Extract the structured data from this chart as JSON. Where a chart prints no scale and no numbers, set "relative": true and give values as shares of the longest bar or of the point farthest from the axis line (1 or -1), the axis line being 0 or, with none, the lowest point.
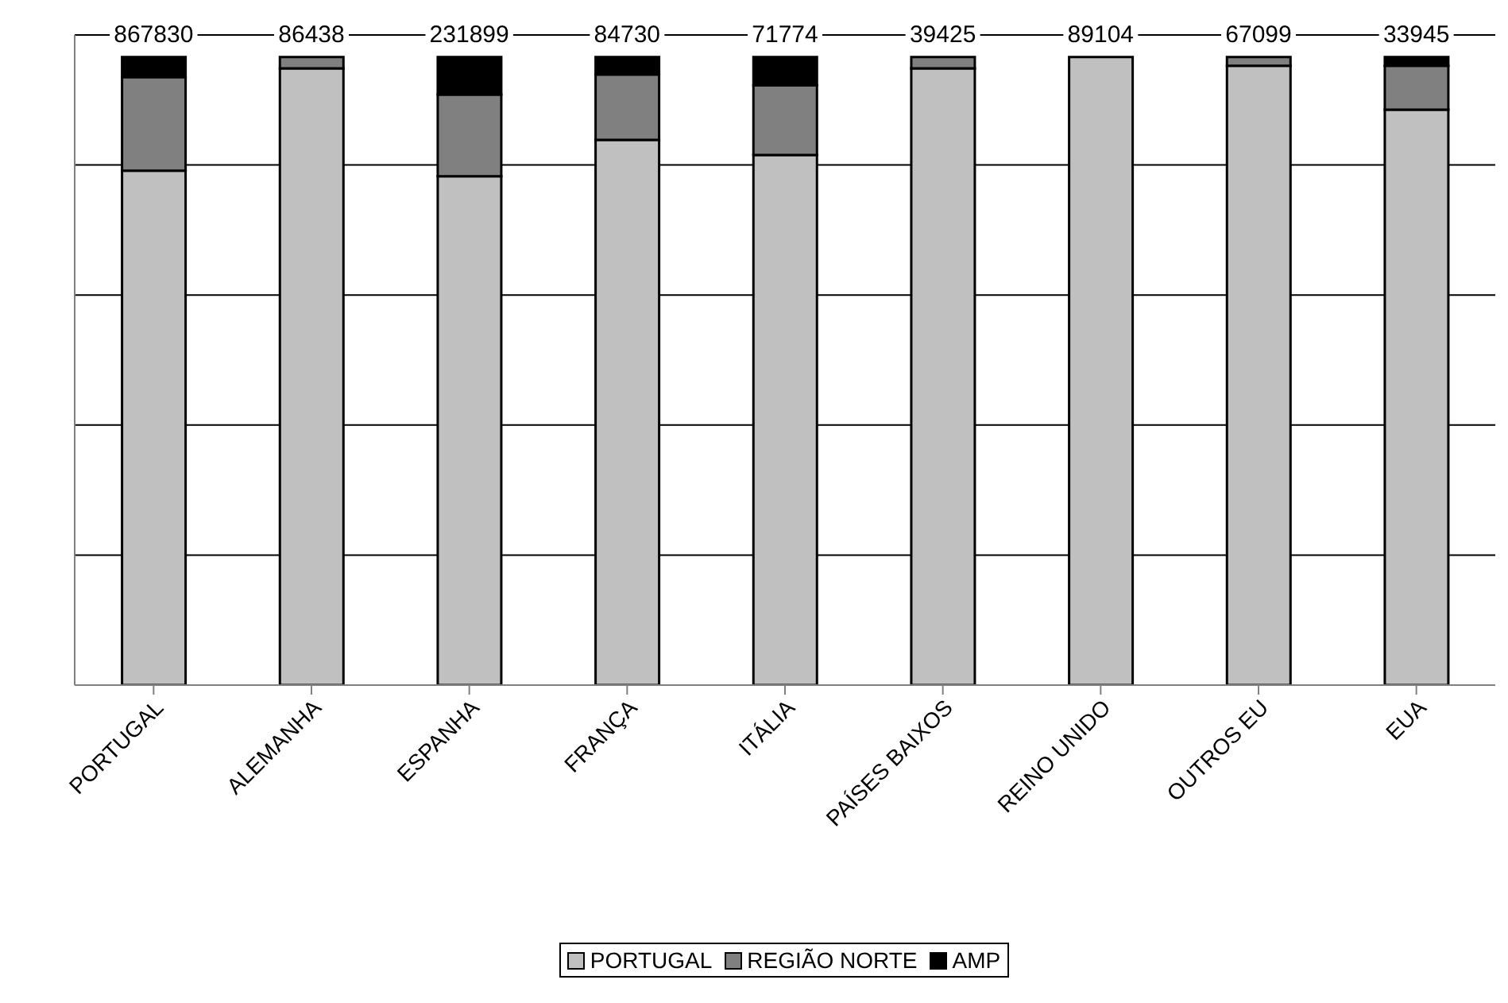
{
  "chart_data": {
    "type": "bar",
    "stacked": true,
    "relative": true,
    "categories": [
      "PORTUGAL",
      "ALEMANHA",
      "ESPANHA",
      "FRANÇA",
      "ITÁLIA",
      "PAÍSES BAIXOS",
      "REINO UNIDO",
      "OUTROS EU",
      "EUA"
    ],
    "series": [
      {
        "name": "PORTUGAL",
        "color": "#c0c0c0",
        "values": [
          0.819,
          0.982,
          0.81,
          0.868,
          0.844,
          0.982,
          1,
          0.986,
          0.916
        ]
      },
      {
        "name": "REGIÃO NORTE",
        "color": "#808080",
        "values": [
          0.149,
          0.018,
          0.13,
          0.104,
          0.111,
          0.018,
          0,
          0.014,
          0.07
        ]
      },
      {
        "name": "AMP",
        "color": "#000000",
        "values": [
          0.032,
          0,
          0.06,
          0.028,
          0.045,
          0,
          0,
          0,
          0.014
        ]
      }
    ],
    "annotations": [
      "867830",
      "86438",
      "231899",
      "84730",
      "71774",
      "39425",
      "89104",
      "67099",
      "33945"
    ],
    "grid": "y",
    "legend": "bottom"
  }
}
